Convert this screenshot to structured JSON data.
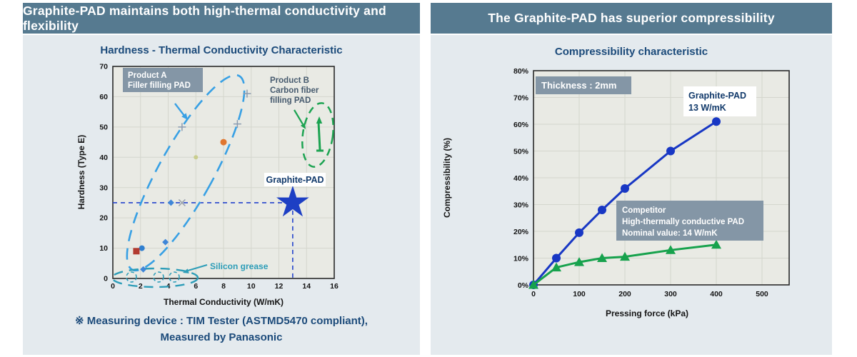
{
  "left_panel": {
    "header": "Graphite-PAD maintains both high-thermal conductivity and flexibility",
    "note_line1": "※ Measuring device : TIM Tester (ASTMD5470 compliant),",
    "note_line2": "Measured by Panasonic"
  },
  "right_panel": {
    "header": "The Graphite-PAD has superior compressibility"
  },
  "colors": {
    "header_bg": "#567a90",
    "panel_bg": "#e4eaee",
    "plot_bg": "#e9eae4",
    "grid": "#d4d6cd",
    "title_navy": "#1b4a7a",
    "product_a_blue": "#38a0e4",
    "product_b_green": "#1ca351",
    "silicon_teal": "#2d9db8",
    "star_blue": "#1d3fc4",
    "graphite_line_blue": "#1837c4",
    "competitor_green": "#17a24d",
    "annotation_box_gray": "#8496a6"
  },
  "chart_data": [
    {
      "type": "scatter",
      "title": "Hardness - Thermal Conductivity Characteristic",
      "xlabel": "Thermal Conductivity (W/mK)",
      "ylabel": "Hardness (Type E)",
      "xlim": [
        0,
        16
      ],
      "ylim": [
        0,
        70
      ],
      "xticks": [
        0,
        2,
        4,
        6,
        8,
        10,
        12,
        14,
        16
      ],
      "yticks": [
        0,
        10,
        20,
        30,
        40,
        50,
        60,
        70
      ],
      "grid": true,
      "series": [
        {
          "name": "plus-markers",
          "marker": "plus",
          "color": "#8a9bb0",
          "size": 5.5,
          "points": [
            [
              9.7,
              61
            ],
            [
              9,
              51
            ],
            [
              5,
              50
            ]
          ]
        },
        {
          "name": "orange-dot",
          "marker": "circle",
          "color": "#e0762f",
          "size": 4.5,
          "points": [
            [
              8,
              45
            ]
          ]
        },
        {
          "name": "olive-dot",
          "marker": "circle",
          "color": "#c9cd8e",
          "size": 3,
          "points": [
            [
              6,
              40
            ]
          ]
        },
        {
          "name": "blue-diamonds",
          "marker": "diamond",
          "color": "#3f86d8",
          "size": 4.5,
          "points": [
            [
              4.2,
              25
            ],
            [
              3.8,
              12
            ],
            [
              2.2,
              3
            ]
          ]
        },
        {
          "name": "gray-x",
          "marker": "x",
          "color": "#98a0ab",
          "size": 4.5,
          "points": [
            [
              5,
              25
            ]
          ]
        },
        {
          "name": "blue-circle",
          "marker": "circle",
          "color": "#2f7fd0",
          "size": 4,
          "points": [
            [
              2.1,
              10
            ]
          ]
        },
        {
          "name": "red-square",
          "marker": "square",
          "color": "#b23b30",
          "size": 4.5,
          "points": [
            [
              1.7,
              9
            ]
          ]
        },
        {
          "name": "graphite-pad-star",
          "marker": "star",
          "color": "#1d3fc4",
          "size": 24,
          "points": [
            [
              13,
              25
            ]
          ]
        }
      ],
      "crosshair": {
        "x": 13,
        "y": 25
      },
      "annotations": {
        "product_a": {
          "line1": "Product A",
          "line2": "Filler filling  PAD"
        },
        "product_b": {
          "line1": "Product B",
          "line2": "Carbon fiber",
          "line3": "filling  PAD"
        },
        "graphite_pad": {
          "label": "Graphite-PAD"
        },
        "silicon_grease": {
          "label": "Silicon grease"
        }
      }
    },
    {
      "type": "line",
      "title": "Compressibility characteristic",
      "xlabel": "Pressing force (kPa)",
      "ylabel": "Compressibility  (%)",
      "xlim": [
        0,
        500
      ],
      "ylim": [
        0,
        80
      ],
      "xticks": [
        0,
        100,
        200,
        300,
        400,
        500
      ],
      "yticks": [
        0,
        10,
        20,
        30,
        40,
        50,
        60,
        70,
        80
      ],
      "ytick_suffix": "%",
      "grid": true,
      "thickness_note": "Thickness : 2mm",
      "x": [
        0,
        50,
        100,
        150,
        200,
        300,
        400
      ],
      "series": [
        {
          "name": "Graphite-PAD",
          "marker": "circle",
          "color": "#1837c4",
          "values": [
            0,
            10,
            19.5,
            28,
            36,
            50,
            61
          ],
          "label_line1": "Graphite-PAD",
          "label_line2": "13 W/mK"
        },
        {
          "name": "Competitor",
          "marker": "triangle",
          "color": "#17a24d",
          "values": [
            0,
            6.5,
            8.5,
            10,
            10.5,
            13,
            15
          ],
          "label_line1": "Competitor",
          "label_line2": "High-thermally conductive PAD",
          "label_line3": "Nominal value: 14 W/mK"
        }
      ]
    }
  ]
}
